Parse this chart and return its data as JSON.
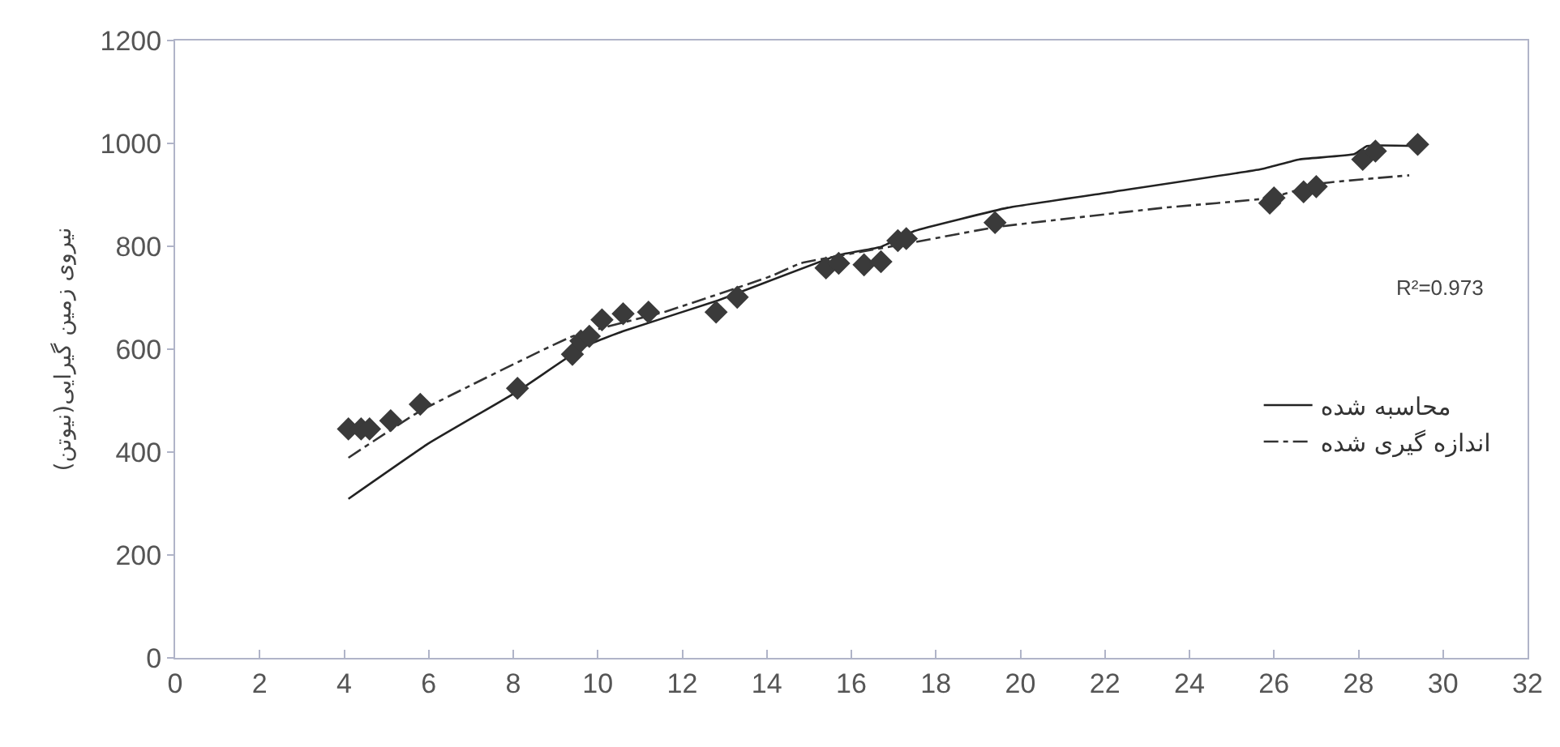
{
  "chart_data": {
    "type": "line",
    "ylabel": "نیروی زمین گیرایی(نیوتن)",
    "xlim": [
      0,
      32
    ],
    "xticks": [
      0,
      2,
      4,
      6,
      8,
      10,
      12,
      14,
      16,
      18,
      20,
      22,
      24,
      26,
      28,
      30,
      32
    ],
    "ylim": [
      0,
      1200
    ],
    "yticks": [
      0,
      200,
      400,
      600,
      800,
      1000,
      1200
    ],
    "grid": false,
    "legend": "right",
    "annotations": [
      "R²=0.973"
    ],
    "series": [
      {
        "name": "محاسبه شده",
        "color": "#222222",
        "line_style": "solid",
        "marker": "none",
        "x": [
          4.1,
          6.0,
          8.1,
          9.7,
          10.6,
          12.85,
          15.7,
          16.7,
          17.5,
          19.7,
          22.2,
          25.7,
          26.6,
          27.9,
          28.2,
          29.4
        ],
        "values": [
          309,
          417,
          518,
          606,
          635,
          695,
          783,
          799,
          830,
          875,
          906,
          950,
          969,
          979,
          995,
          995
        ]
      },
      {
        "name": "اندازه گیری شده",
        "color": "#333333",
        "line_style": "dashed",
        "marker": "none",
        "x": [
          4.1,
          5.8,
          9.4,
          11.6,
          14.1,
          14.8,
          17.3,
          19.4,
          23.4,
          25.9,
          27.1,
          29.2
        ],
        "values": [
          389,
          480,
          625,
          673,
          742,
          767,
          805,
          837,
          875,
          894,
          922,
          938
        ]
      },
      {
        "type": "scatter",
        "color": "#3a3a3a",
        "marker": "diamond",
        "x": [
          4.1,
          4.4,
          4.6,
          5.1,
          5.8,
          8.1,
          9.4,
          9.6,
          9.8,
          10.1,
          10.6,
          11.2,
          12.8,
          13.3,
          15.4,
          15.7,
          16.3,
          16.7,
          17.1,
          17.3,
          19.4,
          25.9,
          26.0,
          26.7,
          27.0,
          28.1,
          28.4,
          29.4
        ],
        "values": [
          445,
          445,
          445,
          461,
          493,
          524,
          590,
          616,
          625,
          657,
          669,
          672,
          672,
          701,
          758,
          767,
          764,
          770,
          811,
          815,
          846,
          884,
          894,
          906,
          916,
          969,
          985,
          998
        ]
      }
    ]
  }
}
